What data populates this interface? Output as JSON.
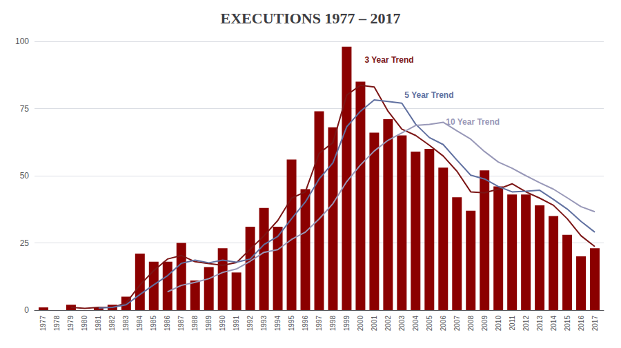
{
  "chart_data": {
    "type": "bar",
    "title": "EXECUTIONS 1977 – 2017",
    "x": [
      1977,
      1978,
      1979,
      1980,
      1981,
      1982,
      1983,
      1984,
      1985,
      1986,
      1987,
      1988,
      1989,
      1990,
      1991,
      1992,
      1993,
      1994,
      1995,
      1996,
      1997,
      1998,
      1999,
      2000,
      2001,
      2002,
      2003,
      2004,
      2005,
      2006,
      2007,
      2008,
      2009,
      2010,
      2011,
      2012,
      2013,
      2014,
      2015,
      2016,
      2017
    ],
    "xlim": [
      1976.35,
      2017.65
    ],
    "xticks": [
      1977,
      1978,
      1979,
      1980,
      1981,
      1982,
      1983,
      1984,
      1985,
      1986,
      1987,
      1988,
      1989,
      1990,
      1991,
      1992,
      1993,
      1994,
      1995,
      1996,
      1997,
      1998,
      1999,
      2000,
      2001,
      2002,
      2003,
      2004,
      2005,
      2006,
      2007,
      2008,
      2009,
      2010,
      2011,
      2012,
      2013,
      2014,
      2015,
      2016,
      2017
    ],
    "ylim": [
      0,
      100
    ],
    "yticks": [
      0,
      25,
      50,
      75,
      100
    ],
    "grid": true,
    "series": [
      {
        "type": "bar",
        "color": "#8B0000",
        "values": [
          1,
          0,
          2,
          0,
          1,
          2,
          5,
          21,
          18,
          18,
          25,
          11,
          16,
          23,
          14,
          31,
          38,
          31,
          56,
          45,
          74,
          68,
          98,
          85,
          66,
          71,
          65,
          59,
          60,
          53,
          42,
          37,
          52,
          46,
          43,
          43,
          39,
          35,
          28,
          20,
          23
        ]
      },
      {
        "name": "3 Year Trend",
        "type": "line",
        "color": "#7B1515",
        "values": [
          null,
          null,
          1.0,
          0.6666666666666666,
          1.0,
          1.0,
          2.6666666666666665,
          9.333333333333334,
          14.666666666666666,
          19.0,
          20.333333333333332,
          18.0,
          17.333333333333332,
          16.666666666666668,
          17.666666666666668,
          22.666666666666668,
          27.666666666666668,
          33.333333333333336,
          41.666666666666664,
          44.0,
          58.333333333333336,
          62.333333333333336,
          80.0,
          83.66666666666667,
          83.0,
          74.0,
          67.33333333333333,
          65.0,
          61.333333333333336,
          57.333333333333336,
          51.666666666666664,
          44.0,
          43.666666666666664,
          45.0,
          47.0,
          44.0,
          41.666666666666664,
          39.0,
          34.0,
          27.666666666666668,
          23.666666666666668
        ]
      },
      {
        "name": "5 Year Trend",
        "type": "line",
        "color": "#6070A0",
        "values": [
          null,
          null,
          null,
          null,
          0.8,
          1.0,
          2.0,
          5.8,
          9.4,
          12.8,
          17.4,
          18.6,
          17.6,
          18.6,
          17.8,
          19.0,
          24.4,
          27.4,
          34.0,
          40.2,
          48.8,
          54.8,
          68.2,
          74.0,
          78.2,
          77.6,
          77.0,
          69.2,
          64.2,
          61.6,
          55.8,
          50.2,
          48.8,
          46.0,
          44.0,
          44.2,
          44.6,
          41.2,
          37.6,
          33.0,
          29.0
        ]
      },
      {
        "name": "10 Year Trend",
        "type": "line",
        "color": "#9898B8",
        "values": [
          null,
          null,
          null,
          null,
          null,
          null,
          null,
          null,
          null,
          6.8,
          9.2,
          10.3,
          11.7,
          14.0,
          15.3,
          18.2,
          21.5,
          22.5,
          26.3,
          29.0,
          33.9,
          39.6,
          47.8,
          54.0,
          59.2,
          63.2,
          65.9,
          68.7,
          69.1,
          69.9,
          66.7,
          63.6,
          59.0,
          55.1,
          52.8,
          50.0,
          47.4,
          45.0,
          41.8,
          38.5,
          36.6
        ]
      }
    ],
    "annotations": [
      {
        "text": "3 Year Trend",
        "x": 2000.3,
        "y": 93,
        "color": "#7B1515"
      },
      {
        "text": "5 Year Trend",
        "x": 2003.2,
        "y": 80,
        "color": "#6070A0"
      },
      {
        "text": "10 Year Trend",
        "x": 2006.2,
        "y": 70,
        "color": "#9898B8"
      }
    ]
  }
}
